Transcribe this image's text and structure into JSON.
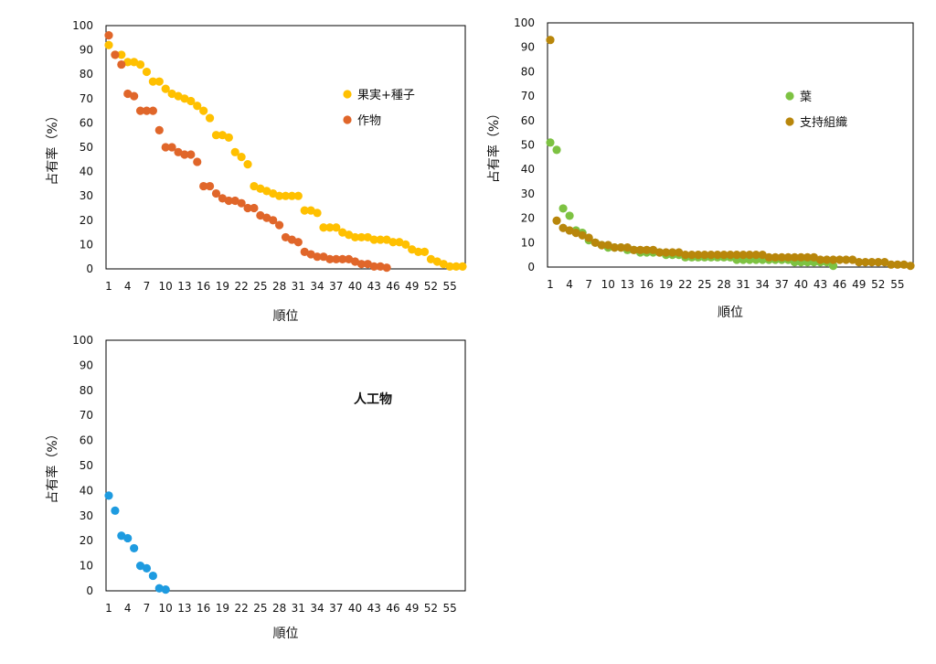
{
  "chart_data": [
    {
      "type": "scatter",
      "xlabel": "順位",
      "ylabel": "占有率（%）",
      "xlim": [
        1,
        57
      ],
      "ylim": [
        0,
        100
      ],
      "xticks": [
        1,
        4,
        7,
        10,
        13,
        16,
        19,
        22,
        25,
        28,
        31,
        34,
        37,
        40,
        43,
        46,
        49,
        52,
        55
      ],
      "yticks": [
        0,
        10,
        20,
        30,
        40,
        50,
        60,
        70,
        80,
        90,
        100
      ],
      "legend_position": "right",
      "series": [
        {
          "name": "果実+種子",
          "color": "#FFC000",
          "values": [
            92,
            88,
            88,
            85,
            85,
            84,
            81,
            77,
            77,
            74,
            72,
            71,
            70,
            69,
            67,
            65,
            62,
            55,
            55,
            54,
            48,
            46,
            43,
            34,
            33,
            32,
            31,
            30,
            30,
            30,
            30,
            24,
            24,
            23,
            17,
            17,
            17,
            15,
            14,
            13,
            13,
            13,
            12,
            12,
            12,
            11,
            11,
            10,
            8,
            7,
            7,
            4,
            3,
            2,
            1,
            1,
            1
          ]
        },
        {
          "name": "作物",
          "color": "#E0662A",
          "values": [
            96,
            88,
            84,
            72,
            71,
            65,
            65,
            65,
            57,
            50,
            50,
            48,
            47,
            47,
            44,
            34,
            34,
            31,
            29,
            28,
            28,
            27,
            25,
            25,
            22,
            21,
            20,
            18,
            13,
            12,
            11,
            7,
            6,
            5,
            5,
            4,
            4,
            4,
            4,
            3,
            2,
            2,
            1,
            1,
            0.5
          ]
        }
      ]
    },
    {
      "type": "scatter",
      "xlabel": "順位",
      "ylabel": "占有率（%）",
      "xlim": [
        1,
        57
      ],
      "ylim": [
        0,
        100
      ],
      "xticks": [
        1,
        4,
        7,
        10,
        13,
        16,
        19,
        22,
        25,
        28,
        31,
        34,
        37,
        40,
        43,
        46,
        49,
        52,
        55
      ],
      "yticks": [
        0,
        10,
        20,
        30,
        40,
        50,
        60,
        70,
        80,
        90,
        100
      ],
      "legend_position": "right",
      "series": [
        {
          "name": "葉",
          "color": "#7DC242",
          "values": [
            51,
            48,
            24,
            21,
            15,
            14,
            11,
            10,
            9,
            8,
            8,
            8,
            7,
            7,
            6,
            6,
            6,
            6,
            5,
            5,
            5,
            4,
            4,
            4,
            4,
            4,
            4,
            4,
            4,
            3,
            3,
            3,
            3,
            3,
            3,
            3,
            3,
            3,
            2,
            2,
            2,
            2,
            2,
            2,
            0.5
          ]
        },
        {
          "name": "支持組織",
          "color": "#B8860B",
          "values": [
            93,
            19,
            16,
            15,
            14,
            13,
            12,
            10,
            9,
            9,
            8,
            8,
            8,
            7,
            7,
            7,
            7,
            6,
            6,
            6,
            6,
            5,
            5,
            5,
            5,
            5,
            5,
            5,
            5,
            5,
            5,
            5,
            5,
            5,
            4,
            4,
            4,
            4,
            4,
            4,
            4,
            4,
            3,
            3,
            3,
            3,
            3,
            3,
            2,
            2,
            2,
            2,
            2,
            1,
            1,
            1,
            0.5
          ]
        }
      ]
    },
    {
      "type": "scatter",
      "xlabel": "順位",
      "ylabel": "占有率（%）",
      "xlim": [
        1,
        57
      ],
      "ylim": [
        0,
        100
      ],
      "xticks": [
        1,
        4,
        7,
        10,
        13,
        16,
        19,
        22,
        25,
        28,
        31,
        34,
        37,
        40,
        43,
        46,
        49,
        52,
        55
      ],
      "yticks": [
        0,
        10,
        20,
        30,
        40,
        50,
        60,
        70,
        80,
        90,
        100
      ],
      "annotation": "人工物",
      "series": [
        {
          "color": "#1E9BE0",
          "values": [
            38,
            32,
            22,
            21,
            17,
            10,
            9,
            6,
            1,
            0.5
          ]
        }
      ]
    }
  ]
}
